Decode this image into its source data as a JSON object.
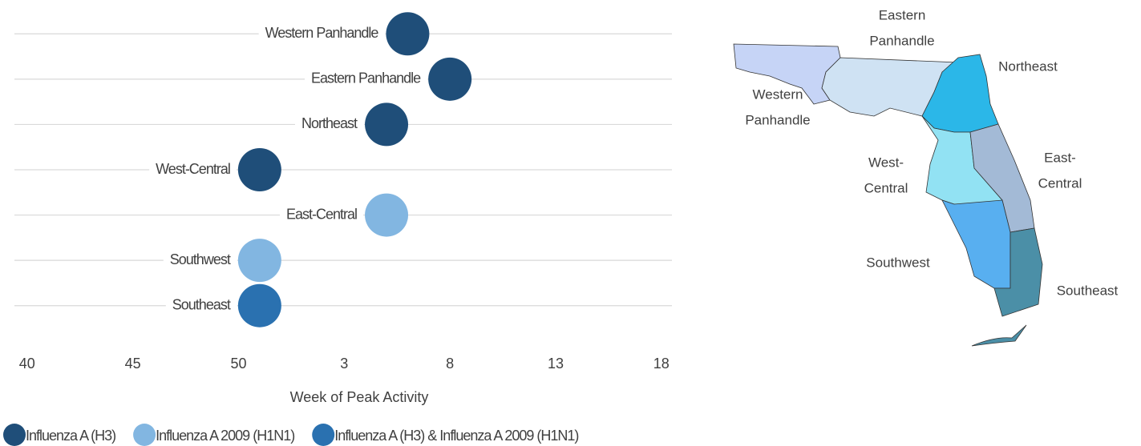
{
  "chart_data": {
    "type": "scatter",
    "xlabel": "Week of Peak Activity",
    "categories": [
      "Western Panhandle",
      "Eastern Panhandle",
      "Northeast",
      "West-Central",
      "East-Central",
      "Southwest",
      "Southeast"
    ],
    "series": [
      {
        "name": "Influenza A (H3)",
        "color": "#1f4e79",
        "values": [
          58,
          60,
          57,
          51,
          null,
          null,
          null
        ]
      },
      {
        "name": "Influenza A 2009 (H1N1)",
        "color": "#82b6e1",
        "values": [
          null,
          null,
          null,
          null,
          57,
          51,
          null
        ]
      },
      {
        "name": "Influenza A (H3) & Influenza A 2009 (H1N1)",
        "color": "#2a71b0",
        "values": [
          null,
          null,
          null,
          null,
          null,
          null,
          51
        ]
      }
    ],
    "xlim": [
      39.4,
      70.5
    ],
    "xticks": [
      40,
      45,
      50,
      {
        "value": 55,
        "label": "3"
      },
      {
        "value": 60,
        "label": "8"
      },
      {
        "value": 65,
        "label": "13"
      },
      {
        "value": 70,
        "label": "18"
      }
    ],
    "legend": "bottom"
  },
  "map": {
    "labels": [
      {
        "lines": [
          "Eastern",
          "Panhandle"
        ],
        "color": "#cfe2f3"
      },
      {
        "lines": [
          "Northeast"
        ],
        "color": "#2bb7e8"
      },
      {
        "lines": [
          "Western",
          "Panhandle"
        ],
        "color": "#c6d4f6"
      },
      {
        "lines": [
          "West-",
          "Central"
        ],
        "color": "#92e2f3"
      },
      {
        "lines": [
          "East-",
          "Central"
        ],
        "color": "#a3bad6"
      },
      {
        "lines": [
          "Southwest"
        ],
        "color": "#58aff0"
      },
      {
        "lines": [
          "Southeast"
        ],
        "color": "#4b8fa7"
      }
    ]
  }
}
